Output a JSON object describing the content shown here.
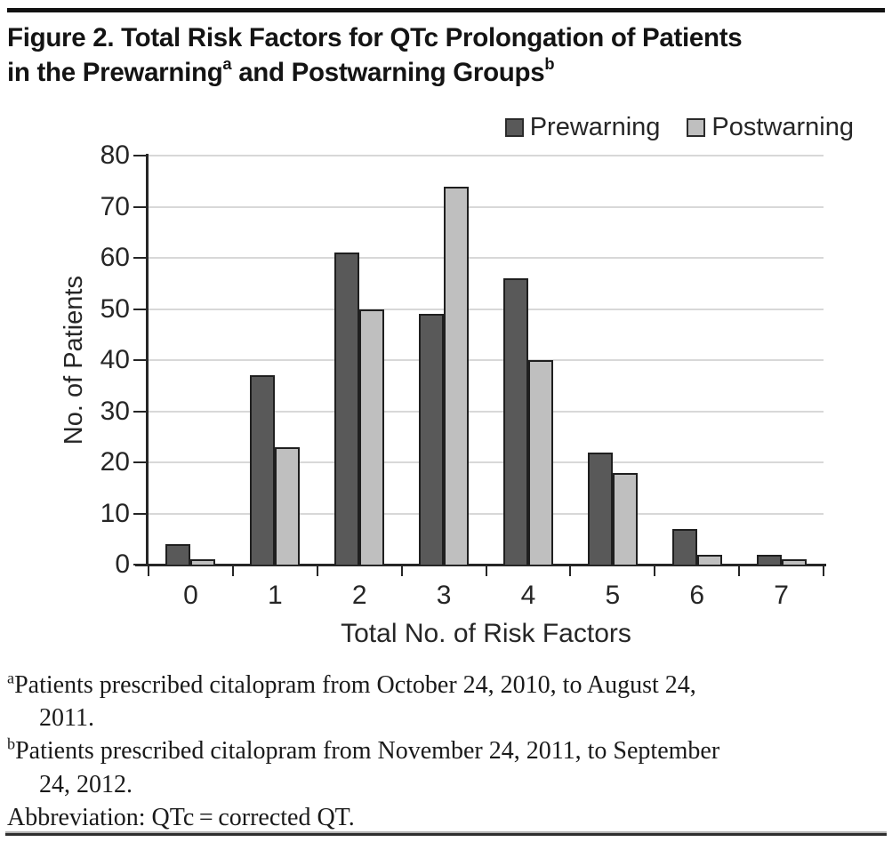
{
  "figure": {
    "title_line1": "Figure 2. Total Risk Factors for QTc Prolongation of Patients",
    "title_line2_prefix": "in the Prewarning",
    "title_sup_a": "a",
    "title_line2_middle": " and Postwarning Groups",
    "title_sup_b": "b"
  },
  "chart_data": {
    "type": "bar",
    "categories": [
      "0",
      "1",
      "2",
      "3",
      "4",
      "5",
      "6",
      "7"
    ],
    "series": [
      {
        "name": "Prewarning",
        "color": "#595959",
        "values": [
          4,
          37,
          61,
          49,
          56,
          22,
          7,
          2
        ]
      },
      {
        "name": "Postwarning",
        "color": "#bfbfbf",
        "values": [
          1,
          23,
          50,
          74,
          40,
          18,
          2,
          1
        ]
      }
    ],
    "xlabel": "Total No. of Risk Factors",
    "ylabel": "No. of Patients",
    "ylim": [
      0,
      80
    ],
    "ytick_step": 10,
    "grid": "horizontal",
    "legend_position": "top-right"
  },
  "colors": {
    "prewarning": "#595959",
    "postwarning": "#bfbfbf",
    "bar_border": "#1f1f1f",
    "gridline": "#d8d8d8",
    "axis": "#262626",
    "rule": "#111111"
  },
  "footnotes": [
    {
      "marker": "a",
      "line1": "Patients prescribed citalopram from October 24, 2010, to August 24,",
      "line2": "2011."
    },
    {
      "marker": "b",
      "line1": "Patients prescribed citalopram from November 24, 2011, to September",
      "line2": "24, 2012."
    },
    {
      "marker": "",
      "line1": "Abbreviation: QTc = corrected QT.",
      "line2": ""
    }
  ]
}
